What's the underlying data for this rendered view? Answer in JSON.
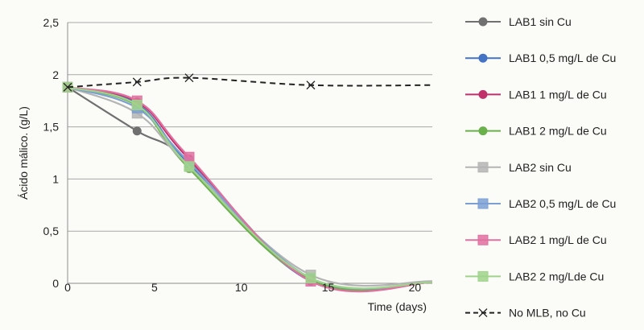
{
  "chart_data": {
    "type": "line",
    "title": "",
    "xlabel": "Time (days)",
    "ylabel": "Ácido málico. (g/L)",
    "xlim": [
      0,
      21
    ],
    "ylim": [
      0,
      2.5
    ],
    "x_ticks": [
      0,
      5,
      10,
      15,
      20
    ],
    "y_ticks": [
      0,
      0.5,
      1,
      1.5,
      2,
      2.5
    ],
    "x_tick_labels": [
      "0",
      "5",
      "10",
      "15",
      "20"
    ],
    "y_tick_labels": [
      "0",
      "0,5",
      "1",
      "1,5",
      "2",
      "2,5"
    ],
    "grid": "horizontal",
    "legend_position": "right",
    "series": [
      {
        "name": "LAB1 sin Cu",
        "color": "#707070",
        "marker": "circle",
        "dash": false,
        "points": [
          [
            0,
            1.88
          ],
          [
            4,
            1.46
          ],
          [
            7,
            1.17
          ],
          [
            14,
            0.03
          ],
          [
            21,
            0.01
          ]
        ]
      },
      {
        "name": "LAB1 0,5 mg/L de Cu",
        "color": "#4472c4",
        "marker": "circle",
        "dash": false,
        "points": [
          [
            0,
            1.88
          ],
          [
            4,
            1.72
          ],
          [
            7,
            1.14
          ],
          [
            14,
            0.02
          ],
          [
            21,
            0.01
          ]
        ]
      },
      {
        "name": "LAB1 1 mg/L de Cu",
        "color": "#c0306a",
        "marker": "circle",
        "dash": false,
        "points": [
          [
            0,
            1.88
          ],
          [
            4,
            1.74
          ],
          [
            7,
            1.19
          ],
          [
            14,
            0.03
          ],
          [
            21,
            0.01
          ]
        ]
      },
      {
        "name": "LAB1 2 mg/L de Cu",
        "color": "#6ab04c",
        "marker": "circle",
        "dash": false,
        "points": [
          [
            0,
            1.88
          ],
          [
            4,
            1.7
          ],
          [
            7,
            1.1
          ],
          [
            14,
            0.03
          ],
          [
            21,
            0.01
          ]
        ]
      },
      {
        "name": "LAB2 sin Cu",
        "color": "#b4b4b4",
        "marker": "square",
        "dash": false,
        "points": [
          [
            0,
            1.88
          ],
          [
            4,
            1.63
          ],
          [
            7,
            1.12
          ],
          [
            14,
            0.08
          ],
          [
            21,
            0.02
          ]
        ]
      },
      {
        "name": "LAB2 0,5 mg/L de Cu",
        "color": "#7b9fd3",
        "marker": "square",
        "dash": false,
        "points": [
          [
            0,
            1.88
          ],
          [
            4,
            1.68
          ],
          [
            7,
            1.16
          ],
          [
            14,
            0.05
          ],
          [
            21,
            0.01
          ]
        ]
      },
      {
        "name": "LAB2 1 mg/L de Cu",
        "color": "#e070a0",
        "marker": "square",
        "dash": false,
        "points": [
          [
            0,
            1.88
          ],
          [
            4,
            1.75
          ],
          [
            7,
            1.21
          ],
          [
            14,
            0.02
          ],
          [
            21,
            0.01
          ]
        ]
      },
      {
        "name": "LAB2 2 mg/Lde Cu",
        "color": "#9fd38b",
        "marker": "square",
        "dash": false,
        "points": [
          [
            0,
            1.88
          ],
          [
            4,
            1.71
          ],
          [
            7,
            1.12
          ],
          [
            14,
            0.05
          ],
          [
            21,
            0.01
          ]
        ]
      },
      {
        "name": "No MLB, no Cu",
        "color": "#222222",
        "marker": "cross",
        "dash": true,
        "points": [
          [
            0,
            1.88
          ],
          [
            4,
            1.93
          ],
          [
            7,
            1.97
          ],
          [
            14,
            1.9
          ],
          [
            21,
            1.9
          ]
        ]
      }
    ]
  }
}
